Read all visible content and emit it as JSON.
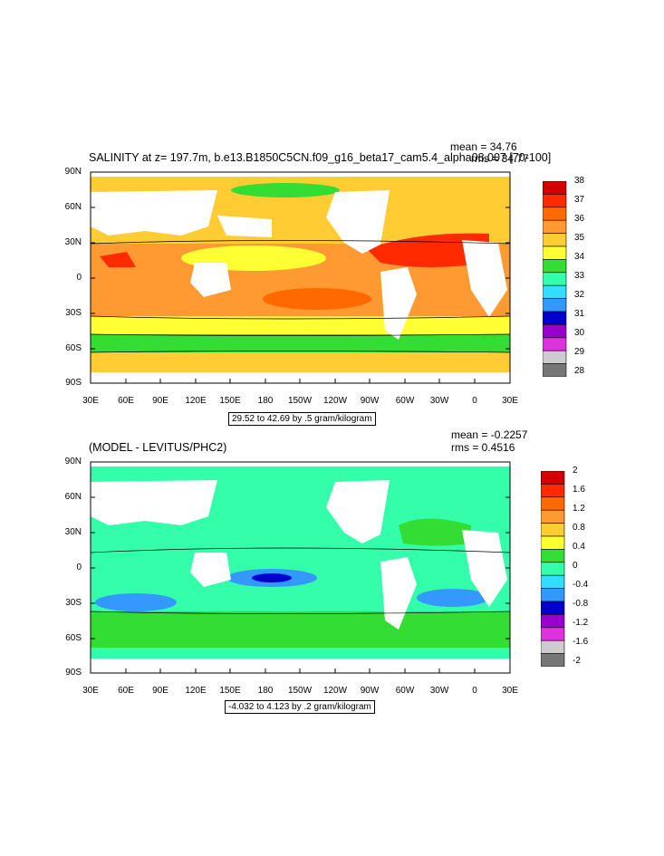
{
  "panels": [
    {
      "title": "SALINITY at z= 197.7m, b.e13.B1850C5CN.f09_g16_beta17_cam5.4_alpha08.007 [70-100]",
      "mean_text": "mean = 34.76",
      "rms_text": "rms = 34.77",
      "range_label": "29.52 to 42.69 by .5 gram/kilogram",
      "colorbar": {
        "labels": [
          "38",
          "37",
          "36",
          "35",
          "34",
          "33",
          "32",
          "31",
          "30",
          "29",
          "28"
        ],
        "colors": [
          "#d40000",
          "#ff2a00",
          "#ff6a00",
          "#ff9a33",
          "#ffcc33",
          "#ffff33",
          "#33dd33",
          "#33ffaa",
          "#33ddff",
          "#3399ff",
          "#0000cc",
          "#9900cc",
          "#dd33dd",
          "#cccccc",
          "#777777"
        ]
      }
    },
    {
      "title": "(MODEL - LEVITUS/PHC2)",
      "mean_text": "mean = -0.2257",
      "rms_text": "rms = 0.4516",
      "range_label": "-4.032 to 4.123 by .2 gram/kilogram",
      "colorbar": {
        "labels": [
          "2",
          "1.6",
          "1.2",
          "0.8",
          "0.4",
          "0",
          "-0.4",
          "-0.8",
          "-1.2",
          "-1.6",
          "-2"
        ],
        "colors": [
          "#d40000",
          "#ff2a00",
          "#ff6a00",
          "#ff9a33",
          "#ffcc33",
          "#ffff33",
          "#33dd33",
          "#33ffaa",
          "#33ddff",
          "#3399ff",
          "#0000cc",
          "#9900cc",
          "#dd33dd",
          "#cccccc",
          "#777777"
        ]
      }
    }
  ],
  "axes": {
    "lat_labels": [
      "90N",
      "60N",
      "30N",
      "0",
      "30S",
      "60S",
      "90S"
    ],
    "lon_labels": [
      "30E",
      "60E",
      "90E",
      "120E",
      "150E",
      "180",
      "150W",
      "120W",
      "90W",
      "60W",
      "30W",
      "0",
      "30E"
    ]
  }
}
